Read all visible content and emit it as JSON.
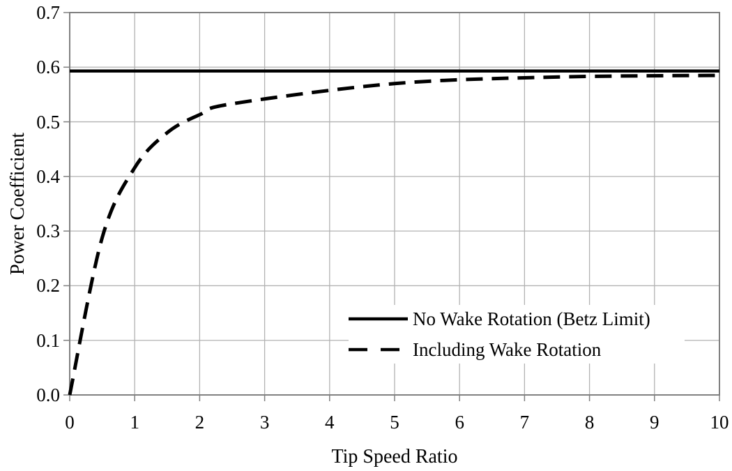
{
  "chart_data": {
    "type": "line",
    "title": "",
    "xlabel": "Tip Speed Ratio",
    "ylabel": "Power Coefficient",
    "xlim": [
      0,
      10
    ],
    "ylim": [
      0.0,
      0.7
    ],
    "x_ticks": [
      0,
      1,
      2,
      3,
      4,
      5,
      6,
      7,
      8,
      9,
      10
    ],
    "y_ticks": [
      "0.0",
      "0.1",
      "0.2",
      "0.3",
      "0.4",
      "0.5",
      "0.6",
      "0.7"
    ],
    "grid": true,
    "legend_position": "inside lower right, no border, white background",
    "series": [
      {
        "name": "No Wake Rotation (Betz Limit)",
        "style": "solid",
        "color": "#000000",
        "x": [
          0,
          10
        ],
        "y": [
          0.593,
          0.593
        ]
      },
      {
        "name": "Including Wake Rotation",
        "style": "dashed",
        "color": "#000000",
        "x": [
          0,
          0.5,
          1.0,
          1.5,
          2.0,
          2.5,
          5.0,
          7.5,
          10.0
        ],
        "y": [
          0.0,
          0.288,
          0.416,
          0.48,
          0.513,
          0.533,
          0.57,
          0.582,
          0.585
        ]
      }
    ]
  },
  "colors": {
    "background": "#ffffff",
    "gridline": "#b2b2b2",
    "axis": "#808080",
    "series_line": "#000000",
    "text": "#000000"
  },
  "legend": {
    "items": [
      {
        "label": "No Wake Rotation (Betz Limit)",
        "swatch": "solid-line"
      },
      {
        "label": "Including Wake Rotation",
        "swatch": "dashed-line"
      }
    ]
  }
}
